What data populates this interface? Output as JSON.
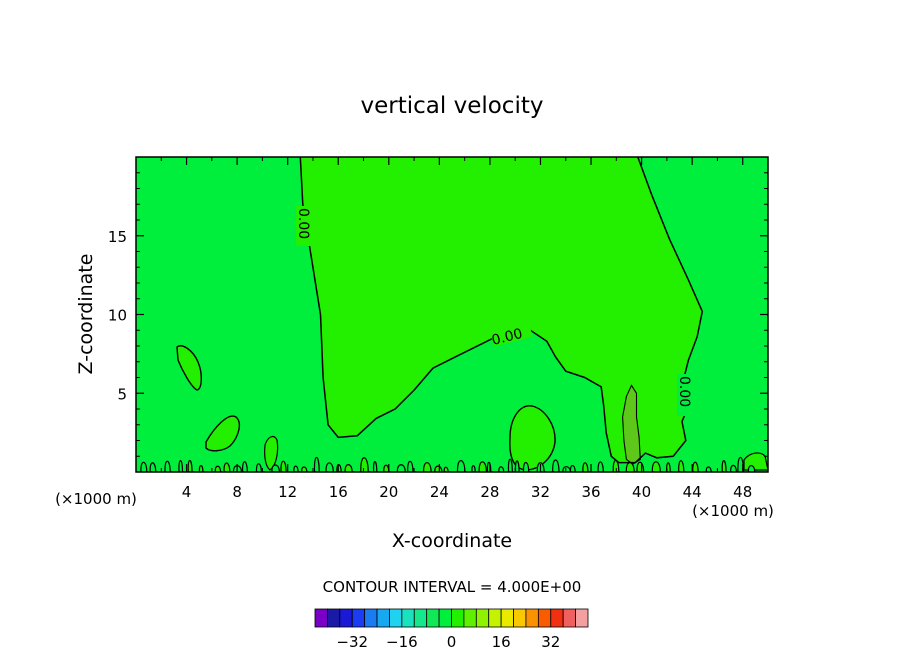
{
  "chart_data": {
    "type": "heatmap",
    "title": "vertical velocity",
    "xlabel": "X-coordinate",
    "ylabel": "Z-coordinate",
    "x_unit": "(×1000 m)",
    "x_unit_right": "(×1000 m)",
    "xlim": [
      0,
      50
    ],
    "ylim": [
      0,
      20
    ],
    "x_ticks": [
      "4",
      "8",
      "12",
      "16",
      "20",
      "24",
      "28",
      "32",
      "36",
      "40",
      "44",
      "48"
    ],
    "y_ticks": [
      "5",
      "10",
      "15"
    ],
    "contour_interval_text": "CONTOUR INTERVAL = 4.000E+00",
    "contour_labels": [
      "0.00",
      "0.00",
      "0.00"
    ],
    "zero_contour": [
      [
        13,
        20
      ],
      [
        13.2,
        17
      ],
      [
        13.8,
        14
      ],
      [
        14.6,
        10
      ],
      [
        14.8,
        6
      ],
      [
        15.2,
        3
      ],
      [
        16,
        2.2
      ],
      [
        17.5,
        2.3
      ],
      [
        19,
        3.4
      ],
      [
        20.5,
        4.0
      ],
      [
        22,
        5.2
      ],
      [
        23.5,
        6.6
      ],
      [
        25.5,
        7.4
      ],
      [
        27.5,
        8.2
      ],
      [
        29,
        8.8
      ],
      [
        30.2,
        9.2
      ],
      [
        31.2,
        9.0
      ],
      [
        32.5,
        8.3
      ],
      [
        33.2,
        7.3
      ],
      [
        34,
        6.4
      ],
      [
        35.5,
        6.0
      ],
      [
        36.8,
        5.4
      ],
      [
        37,
        4.2
      ],
      [
        37.2,
        2.5
      ],
      [
        37.6,
        1.0
      ],
      [
        38.2,
        0.6
      ],
      [
        39.5,
        0.6
      ],
      [
        40.3,
        1.2
      ],
      [
        41.2,
        0.9
      ],
      [
        42.5,
        1.0
      ],
      [
        43.5,
        2.0
      ],
      [
        43.2,
        3.2
      ],
      [
        43.6,
        4.0
      ],
      [
        43.3,
        5.8
      ],
      [
        43.7,
        7.1
      ],
      [
        44.4,
        8.6
      ],
      [
        44.8,
        10.2
      ],
      [
        43.7,
        12.2
      ],
      [
        42.2,
        14.8
      ],
      [
        40.8,
        17.6
      ],
      [
        39.7,
        20.0
      ]
    ],
    "weak_updraft_contour": [
      [
        38.5,
        3.5
      ],
      [
        38.8,
        4.8
      ],
      [
        39.2,
        5.5
      ],
      [
        39.6,
        5.0
      ],
      [
        39.6,
        3.5
      ],
      [
        39.8,
        2.2
      ],
      [
        39.9,
        0.8
      ],
      [
        39.3,
        0.5
      ],
      [
        38.8,
        0.8
      ],
      [
        38.6,
        2.0
      ]
    ],
    "colorbar": {
      "levels": [
        -40,
        -36,
        -32,
        -28,
        -24,
        -20,
        -16,
        -12,
        -8,
        -4,
        0,
        4,
        8,
        12,
        16,
        20,
        24,
        28,
        32,
        36,
        40
      ],
      "colors": [
        "#7a00c8",
        "#1a1aa6",
        "#1a1ad6",
        "#1a3cf2",
        "#1a7cf2",
        "#16a8f0",
        "#1ed2f0",
        "#1ae2be",
        "#16e68c",
        "#10e858",
        "#00ee3c",
        "#22f000",
        "#5ef000",
        "#8ef200",
        "#c4f200",
        "#eaea00",
        "#f8c800",
        "#fa9200",
        "#fa5a00",
        "#f03010",
        "#f06060",
        "#f4a0a0"
      ],
      "tick_labels": [
        "−32",
        "−16",
        "0",
        "16",
        "32"
      ],
      "tick_values": [
        -32,
        -16,
        0,
        16,
        32
      ]
    }
  }
}
